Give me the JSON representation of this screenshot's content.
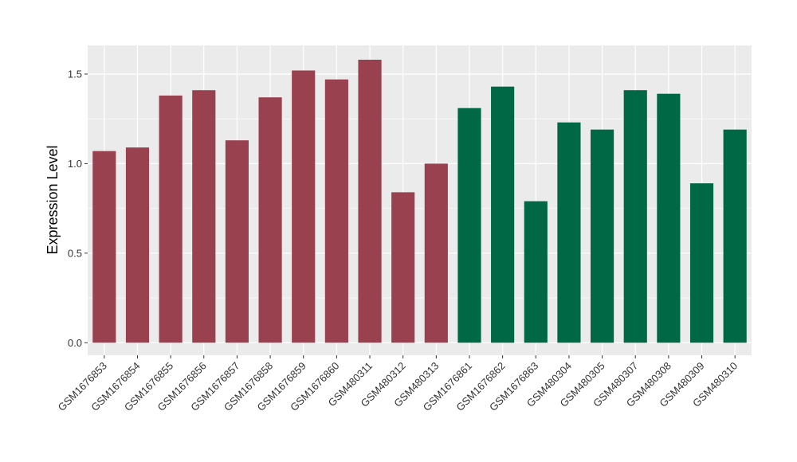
{
  "chart_data": {
    "type": "bar",
    "title": "",
    "xlabel": "",
    "ylabel": "Expression Level",
    "ylim": [
      -0.07,
      1.66
    ],
    "yticks": [
      0.0,
      0.5,
      1.0,
      1.5
    ],
    "ytick_labels": [
      "0.0",
      "0.5",
      "1.0",
      "1.5"
    ],
    "grid": true,
    "legend": "none",
    "categories": [
      "GSM1676853",
      "GSM1676854",
      "GSM1676855",
      "GSM1676856",
      "GSM1676857",
      "GSM1676858",
      "GSM1676859",
      "GSM1676860",
      "GSM480311",
      "GSM480312",
      "GSM480313",
      "GSM1676861",
      "GSM1676862",
      "GSM1676863",
      "GSM480304",
      "GSM480305",
      "GSM480307",
      "GSM480308",
      "GSM480309",
      "GSM480310"
    ],
    "values": [
      1.07,
      1.09,
      1.38,
      1.41,
      1.13,
      1.37,
      1.52,
      1.47,
      1.58,
      0.84,
      1.0,
      1.31,
      1.43,
      0.79,
      1.23,
      1.19,
      1.41,
      1.39,
      0.89,
      1.19
    ],
    "group_sizes": [
      11,
      9
    ],
    "colors": [
      "#9a414f",
      "#006844"
    ],
    "panel_background": "#ebebeb",
    "gridline_color": "#ffffff"
  }
}
